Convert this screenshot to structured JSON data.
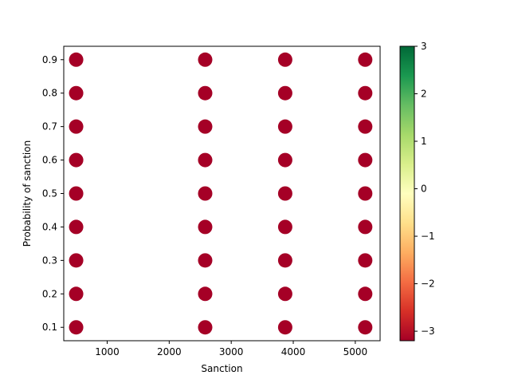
{
  "chart_data": {
    "type": "scatter",
    "title": "",
    "xlabel": "Sanction",
    "ylabel": "Probability of sanction",
    "xlim": [
      300,
      5400
    ],
    "ylim": [
      0.06,
      0.94
    ],
    "x_ticks": [
      1000,
      2000,
      3000,
      4000,
      5000
    ],
    "y_ticks": [
      0.1,
      0.2,
      0.3,
      0.4,
      0.5,
      0.6,
      0.7,
      0.8,
      0.9
    ],
    "grid": false,
    "series": [
      {
        "marker_color": "#a50026",
        "color_value": -3.2,
        "points": [
          [
            500,
            0.1
          ],
          [
            500,
            0.2
          ],
          [
            500,
            0.3
          ],
          [
            500,
            0.4
          ],
          [
            500,
            0.5
          ],
          [
            500,
            0.6
          ],
          [
            500,
            0.7
          ],
          [
            500,
            0.8
          ],
          [
            500,
            0.9
          ],
          [
            2580,
            0.1
          ],
          [
            2580,
            0.2
          ],
          [
            2580,
            0.3
          ],
          [
            2580,
            0.4
          ],
          [
            2580,
            0.5
          ],
          [
            2580,
            0.6
          ],
          [
            2580,
            0.7
          ],
          [
            2580,
            0.8
          ],
          [
            2580,
            0.9
          ],
          [
            3870,
            0.1
          ],
          [
            3870,
            0.2
          ],
          [
            3870,
            0.3
          ],
          [
            3870,
            0.4
          ],
          [
            3870,
            0.5
          ],
          [
            3870,
            0.6
          ],
          [
            3870,
            0.7
          ],
          [
            3870,
            0.8
          ],
          [
            3870,
            0.9
          ],
          [
            5160,
            0.1
          ],
          [
            5160,
            0.2
          ],
          [
            5160,
            0.3
          ],
          [
            5160,
            0.4
          ],
          [
            5160,
            0.5
          ],
          [
            5160,
            0.6
          ],
          [
            5160,
            0.7
          ],
          [
            5160,
            0.8
          ],
          [
            5160,
            0.9
          ]
        ]
      }
    ],
    "colorbar": {
      "colormap": "RdYlGn",
      "range": [
        -3.2,
        3
      ],
      "ticks": [
        -3,
        -2,
        -1,
        0,
        1,
        2,
        3
      ],
      "tick_labels": [
        "−3",
        "−2",
        "−1",
        "0",
        "1",
        "2",
        "3"
      ],
      "stops": [
        "#a50026",
        "#d73027",
        "#f46d43",
        "#fdae61",
        "#fee08b",
        "#ffffbf",
        "#d9ef8b",
        "#a6d96a",
        "#66bd63",
        "#1a9850",
        "#006837"
      ]
    }
  }
}
